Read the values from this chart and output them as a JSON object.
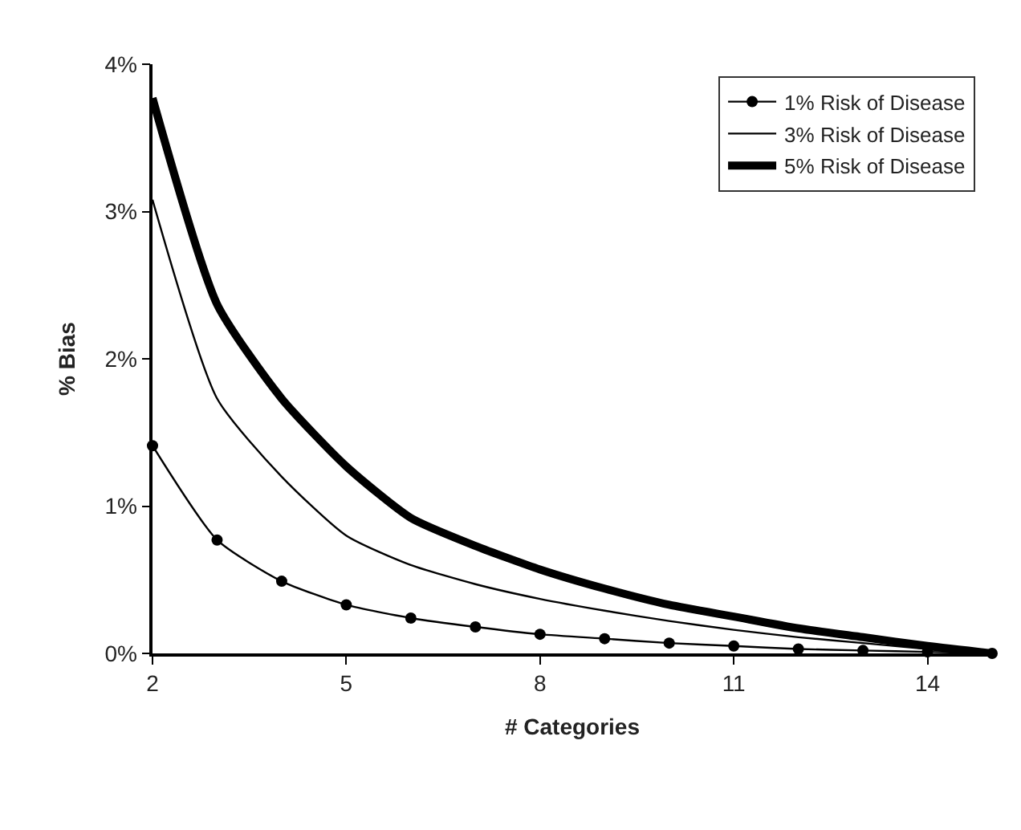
{
  "chart_data": {
    "type": "line",
    "xlabel": "# Categories",
    "ylabel": "% Bias",
    "x": [
      2,
      3,
      4,
      5,
      6,
      7,
      8,
      9,
      10,
      11,
      12,
      13,
      14,
      15
    ],
    "xlim": [
      2,
      15
    ],
    "xticks": [
      2,
      5,
      8,
      11,
      14
    ],
    "ylim": [
      0,
      4
    ],
    "yticks": [
      {
        "value": 0,
        "label": "0%"
      },
      {
        "value": 1,
        "label": "1%"
      },
      {
        "value": 2,
        "label": "2%"
      },
      {
        "value": 3,
        "label": "3%"
      },
      {
        "value": 4,
        "label": "4%"
      }
    ],
    "grid": false,
    "legend": "top right",
    "line_style": "solid",
    "series": [
      {
        "name": "1% Risk of Disease",
        "color": "#000000",
        "marker": "circle",
        "values": [
          1.41,
          0.77,
          0.49,
          0.33,
          0.24,
          0.18,
          0.13,
          0.1,
          0.07,
          0.05,
          0.03,
          0.02,
          0.01,
          0
        ]
      },
      {
        "name": "3% Risk of Disease",
        "color": "#000000",
        "marker": "none",
        "values": [
          3.08,
          1.73,
          1.2,
          0.8,
          0.6,
          0.47,
          0.37,
          0.29,
          0.22,
          0.16,
          0.11,
          0.07,
          0.03,
          0
        ]
      },
      {
        "name": "5% Risk of Disease",
        "color": "#000000",
        "marker": "none",
        "values": [
          3.77,
          2.37,
          1.73,
          1.27,
          0.92,
          0.73,
          0.57,
          0.44,
          0.33,
          0.25,
          0.17,
          0.11,
          0.05,
          0
        ]
      }
    ]
  }
}
